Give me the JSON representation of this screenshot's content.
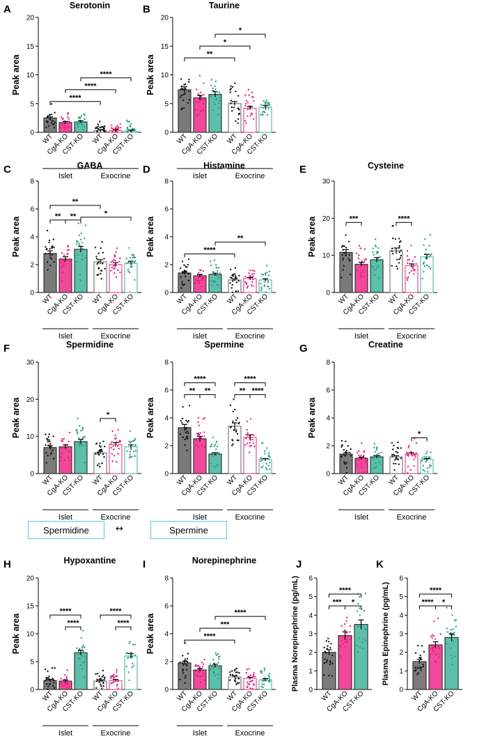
{
  "colors": {
    "wt": "#7a7a7a",
    "cga": "#f0489a",
    "cst": "#5bbfaa",
    "dot_wt": "#111111",
    "dot_cga": "#e8207f",
    "dot_cst": "#2f9f88"
  },
  "flow": {
    "left": "Spermidine",
    "right": "Spermine",
    "arrow": "↔"
  },
  "chart_data": [
    {
      "type": "bar",
      "panel": "A",
      "title": "Serotonin",
      "ylabel": "Peak area",
      "ylim": [
        0,
        20
      ],
      "yticks": [
        0,
        5,
        10,
        15,
        20
      ],
      "categories": [
        "WT",
        "CgA-KO",
        "CST-KO",
        "WT",
        "CgA-KO",
        "CST-KO"
      ],
      "groups": [
        "Islet",
        "Exocrine"
      ],
      "values": [
        2.5,
        1.7,
        1.8,
        0.3,
        0.3,
        0.2
      ],
      "filled": [
        true,
        true,
        true,
        false,
        false,
        false
      ],
      "color_keys": [
        "wt",
        "cga",
        "cst",
        "wt",
        "cga",
        "cst"
      ],
      "sig": [
        {
          "from": 0,
          "to": 3,
          "label": "****"
        },
        {
          "from": 1,
          "to": 4,
          "label": "****"
        },
        {
          "from": 2,
          "to": 5,
          "label": "****"
        }
      ]
    },
    {
      "type": "bar",
      "panel": "B",
      "title": "Taurine",
      "ylabel": "Peak area",
      "ylim": [
        0,
        20
      ],
      "yticks": [
        0,
        5,
        10,
        15,
        20
      ],
      "categories": [
        "WT",
        "CgA-KO",
        "CST-KO",
        "WT",
        "CgA-KO",
        "CST-KO"
      ],
      "groups": [
        "Islet",
        "Exocrine"
      ],
      "values": [
        7.4,
        6.0,
        6.6,
        5.0,
        4.2,
        4.4
      ],
      "filled": [
        true,
        true,
        true,
        false,
        false,
        false
      ],
      "color_keys": [
        "wt",
        "cga",
        "cst",
        "wt",
        "cga",
        "cst"
      ],
      "sig": [
        {
          "from": 0,
          "to": 3,
          "label": "**"
        },
        {
          "from": 1,
          "to": 4,
          "label": "*"
        },
        {
          "from": 2,
          "to": 5,
          "label": "*"
        }
      ]
    },
    {
      "type": "bar",
      "panel": "C",
      "title": "GABA",
      "ylabel": "Peak area",
      "ylim": [
        0,
        8
      ],
      "yticks": [
        0,
        2,
        4,
        6,
        8
      ],
      "categories": [
        "WT",
        "CgA-KO",
        "CST-KO",
        "WT",
        "CgA-KO",
        "CST-KO"
      ],
      "groups": [
        "Islet",
        "Exocrine"
      ],
      "values": [
        2.8,
        2.4,
        3.1,
        2.2,
        2.0,
        2.1
      ],
      "filled": [
        true,
        true,
        true,
        false,
        false,
        false
      ],
      "color_keys": [
        "wt",
        "cga",
        "cst",
        "wt",
        "cga",
        "cst"
      ],
      "sig": [
        {
          "from": 0,
          "to": 1,
          "label": "**"
        },
        {
          "from": 1,
          "to": 2,
          "label": "**"
        },
        {
          "from": 0,
          "to": 3,
          "label": "**"
        },
        {
          "from": 2,
          "to": 5,
          "label": "*"
        }
      ]
    },
    {
      "type": "bar",
      "panel": "D",
      "title": "Histamine",
      "ylabel": "Peak area",
      "ylim": [
        0,
        8
      ],
      "yticks": [
        0,
        2,
        4,
        6,
        8
      ],
      "categories": [
        "WT",
        "CgA-KO",
        "CST-KO",
        "WT",
        "CgA-KO",
        "CST-KO"
      ],
      "groups": [
        "Islet",
        "Exocrine"
      ],
      "values": [
        1.4,
        1.2,
        1.3,
        0.9,
        1.0,
        0.9
      ],
      "filled": [
        true,
        true,
        true,
        false,
        false,
        false
      ],
      "color_keys": [
        "wt",
        "cga",
        "cst",
        "wt",
        "cga",
        "cst"
      ],
      "sig": [
        {
          "from": 0,
          "to": 3,
          "label": "****"
        },
        {
          "from": 2,
          "to": 5,
          "label": "**"
        }
      ]
    },
    {
      "type": "bar",
      "panel": "E",
      "title": "Cysteine",
      "ylabel": "Peak area",
      "ylim": [
        0,
        30
      ],
      "yticks": [
        0,
        10,
        20,
        30
      ],
      "categories": [
        "WT",
        "CgA-KO",
        "CST-KO",
        "WT",
        "CgA-KO",
        "CST-KO"
      ],
      "groups": [
        "Islet",
        "Exocrine"
      ],
      "values": [
        10.8,
        7.6,
        8.8,
        11.2,
        7.2,
        9.6
      ],
      "filled": [
        true,
        true,
        true,
        false,
        false,
        false
      ],
      "color_keys": [
        "wt",
        "cga",
        "cst",
        "wt",
        "cga",
        "cst"
      ],
      "sig": [
        {
          "from": 0,
          "to": 1,
          "label": "***"
        },
        {
          "from": 3,
          "to": 4,
          "label": "****"
        }
      ]
    },
    {
      "type": "bar",
      "panel": "F",
      "title": "Spermidine",
      "ylabel": "Peak area",
      "ylim": [
        0,
        30
      ],
      "yticks": [
        0,
        10,
        20,
        30
      ],
      "categories": [
        "WT",
        "CgA-KO",
        "CST-KO",
        "WT",
        "CgA-KO",
        "CST-KO"
      ],
      "groups": [
        "Islet",
        "Exocrine"
      ],
      "values": [
        7.0,
        7.2,
        8.6,
        5.6,
        7.8,
        7.2
      ],
      "filled": [
        true,
        true,
        true,
        false,
        false,
        false
      ],
      "color_keys": [
        "wt",
        "cga",
        "cst",
        "wt",
        "cga",
        "cst"
      ],
      "sig": [
        {
          "from": 3,
          "to": 4,
          "label": "*"
        }
      ]
    },
    {
      "type": "bar",
      "panel": "",
      "title": "Spermine",
      "ylabel": "Peak area",
      "ylim": [
        0,
        8
      ],
      "yticks": [
        0,
        2,
        4,
        6,
        8
      ],
      "categories": [
        "WT",
        "CgA-KO",
        "CST-KO",
        "WT",
        "CgA-KO",
        "CST-KO"
      ],
      "groups": [
        "Islet",
        "Exocrine"
      ],
      "values": [
        3.3,
        2.5,
        1.4,
        3.4,
        2.6,
        1.0
      ],
      "filled": [
        true,
        true,
        true,
        false,
        false,
        false
      ],
      "color_keys": [
        "wt",
        "cga",
        "cst",
        "wt",
        "cga",
        "cst"
      ],
      "sig": [
        {
          "from": 0,
          "to": 1,
          "label": "**"
        },
        {
          "from": 1,
          "to": 2,
          "label": "**"
        },
        {
          "from": 0,
          "to": 2,
          "label": "****"
        },
        {
          "from": 3,
          "to": 4,
          "label": "**"
        },
        {
          "from": 4,
          "to": 5,
          "label": "****"
        },
        {
          "from": 3,
          "to": 5,
          "label": "****"
        }
      ]
    },
    {
      "type": "bar",
      "panel": "G",
      "title": "Creatine",
      "ylabel": "Peak area",
      "ylim": [
        0,
        8
      ],
      "yticks": [
        0,
        2,
        4,
        6,
        8
      ],
      "categories": [
        "WT",
        "CgA-KO",
        "CST-KO",
        "WT",
        "CgA-KO",
        "CST-KO"
      ],
      "groups": [
        "Islet",
        "Exocrine"
      ],
      "values": [
        1.4,
        1.1,
        1.2,
        1.2,
        1.4,
        1.0
      ],
      "filled": [
        true,
        true,
        true,
        false,
        false,
        false
      ],
      "color_keys": [
        "wt",
        "cga",
        "cst",
        "wt",
        "cga",
        "cst"
      ],
      "sig": [
        {
          "from": 4,
          "to": 5,
          "label": "*"
        }
      ]
    },
    {
      "type": "bar",
      "panel": "H",
      "title": "Hypoxantine",
      "ylabel": "Peak area",
      "ylim": [
        0,
        20
      ],
      "yticks": [
        0,
        5,
        10,
        15,
        20
      ],
      "categories": [
        "WT",
        "CgA-KO",
        "CST-KO",
        "WT",
        "CgA-KO",
        "CST-KO"
      ],
      "groups": [
        "Islet",
        "Exocrine"
      ],
      "values": [
        1.6,
        1.5,
        6.6,
        1.5,
        1.6,
        6.0
      ],
      "filled": [
        true,
        true,
        true,
        false,
        false,
        false
      ],
      "color_keys": [
        "wt",
        "cga",
        "cst",
        "wt",
        "cga",
        "cst"
      ],
      "sig": [
        {
          "from": 1,
          "to": 2,
          "label": "****"
        },
        {
          "from": 0,
          "to": 2,
          "label": "****"
        },
        {
          "from": 4,
          "to": 5,
          "label": "****"
        },
        {
          "from": 3,
          "to": 5,
          "label": "****"
        }
      ]
    },
    {
      "type": "bar",
      "panel": "I",
      "title": "Norepinephrine",
      "ylabel": "Peak area",
      "ylim": [
        0,
        8
      ],
      "yticks": [
        0,
        2,
        4,
        6,
        8
      ],
      "categories": [
        "WT",
        "CgA-KO",
        "CST-KO",
        "WT",
        "CgA-KO",
        "CST-KO"
      ],
      "groups": [
        "Islet",
        "Exocrine"
      ],
      "values": [
        1.9,
        1.4,
        1.7,
        0.9,
        0.8,
        0.7
      ],
      "filled": [
        true,
        true,
        true,
        false,
        false,
        false
      ],
      "color_keys": [
        "wt",
        "cga",
        "cst",
        "wt",
        "cga",
        "cst"
      ],
      "sig": [
        {
          "from": 0,
          "to": 3,
          "label": "****"
        },
        {
          "from": 1,
          "to": 4,
          "label": "***"
        },
        {
          "from": 2,
          "to": 5,
          "label": "****"
        }
      ]
    },
    {
      "type": "bar",
      "panel": "J",
      "title": "",
      "ylabel": "Plasma Norepinephrine (pg/mL)",
      "ylim": [
        0,
        6
      ],
      "yticks": [
        0,
        1,
        2,
        3,
        4,
        5,
        6
      ],
      "categories": [
        "WT",
        "CgA-KO",
        "CST-KO"
      ],
      "groups": [],
      "values": [
        2.0,
        2.9,
        3.5
      ],
      "filled": [
        true,
        true,
        true
      ],
      "color_keys": [
        "wt",
        "cga",
        "cst"
      ],
      "sig": [
        {
          "from": 0,
          "to": 1,
          "label": "***"
        },
        {
          "from": 0,
          "to": 2,
          "label": "****"
        },
        {
          "from": 1,
          "to": 2,
          "label": "*"
        }
      ]
    },
    {
      "type": "bar",
      "panel": "K",
      "title": "",
      "ylabel": "Plasma Epinephrine (pg/mL)",
      "ylim": [
        0,
        6
      ],
      "yticks": [
        0,
        1,
        2,
        3,
        4,
        5,
        6
      ],
      "categories": [
        "WT",
        "CgA-KO",
        "CST-KO"
      ],
      "groups": [],
      "values": [
        1.5,
        2.4,
        2.8
      ],
      "filled": [
        true,
        true,
        true
      ],
      "color_keys": [
        "wt",
        "cga",
        "cst"
      ],
      "sig": [
        {
          "from": 0,
          "to": 1,
          "label": "****"
        },
        {
          "from": 0,
          "to": 2,
          "label": "****"
        },
        {
          "from": 1,
          "to": 2,
          "label": "*"
        }
      ]
    }
  ]
}
